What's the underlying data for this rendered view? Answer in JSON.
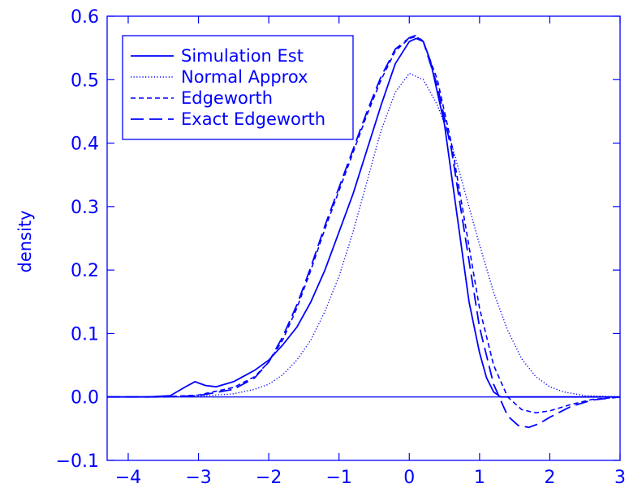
{
  "chart_data": {
    "type": "line",
    "xlabel": "",
    "ylabel": "density",
    "xlim": [
      -4.3,
      3.0
    ],
    "ylim": [
      -0.1,
      0.6
    ],
    "xticks": [
      -4,
      -3,
      -2,
      -1,
      0,
      1,
      2,
      3
    ],
    "xtick_labels": [
      "−4",
      "−3",
      "−2",
      "−1",
      "0",
      "1",
      "2",
      "3"
    ],
    "yticks": [
      -0.1,
      0.0,
      0.1,
      0.2,
      0.3,
      0.4,
      0.5,
      0.6
    ],
    "ytick_labels": [
      "−0.1",
      "0.0",
      "0.1",
      "0.2",
      "0.3",
      "0.4",
      "0.5",
      "0.6"
    ],
    "grid": false,
    "legend_position": "top-left",
    "color": "#0000ff",
    "series": [
      {
        "name": "Simulation Est",
        "style": "solid",
        "x": [
          -4.3,
          -3.7,
          -3.4,
          -3.2,
          -3.05,
          -2.9,
          -2.75,
          -2.5,
          -2.2,
          -2.0,
          -1.8,
          -1.6,
          -1.4,
          -1.2,
          -1.0,
          -0.8,
          -0.6,
          -0.4,
          -0.2,
          0.0,
          0.1,
          0.2,
          0.3,
          0.5,
          0.7,
          0.85,
          1.0,
          1.1,
          1.2,
          1.3,
          1.5,
          2.0,
          2.5,
          3.0
        ],
        "y": [
          0.0,
          0.0,
          0.002,
          0.015,
          0.024,
          0.018,
          0.016,
          0.024,
          0.042,
          0.058,
          0.082,
          0.11,
          0.15,
          0.2,
          0.26,
          0.32,
          0.39,
          0.46,
          0.525,
          0.56,
          0.565,
          0.56,
          0.53,
          0.43,
          0.27,
          0.15,
          0.07,
          0.03,
          0.008,
          0.0,
          0.0,
          0.0,
          0.0,
          0.0
        ]
      },
      {
        "name": "Normal Approx",
        "style": "dotted",
        "x": [
          -4.3,
          -3.5,
          -3.0,
          -2.5,
          -2.2,
          -2.0,
          -1.8,
          -1.6,
          -1.4,
          -1.2,
          -1.0,
          -0.8,
          -0.6,
          -0.4,
          -0.2,
          0.0,
          0.2,
          0.4,
          0.6,
          0.8,
          1.0,
          1.2,
          1.4,
          1.6,
          1.8,
          2.0,
          2.2,
          2.5,
          3.0
        ],
        "y": [
          0.0,
          0.0,
          0.001,
          0.005,
          0.012,
          0.02,
          0.035,
          0.058,
          0.09,
          0.135,
          0.19,
          0.26,
          0.34,
          0.42,
          0.48,
          0.51,
          0.5,
          0.46,
          0.4,
          0.32,
          0.24,
          0.165,
          0.105,
          0.06,
          0.032,
          0.016,
          0.008,
          0.002,
          0.0
        ]
      },
      {
        "name": "Edgeworth",
        "style": "short-dash",
        "x": [
          -4.3,
          -3.5,
          -3.0,
          -2.5,
          -2.2,
          -2.0,
          -1.8,
          -1.6,
          -1.4,
          -1.2,
          -1.0,
          -0.8,
          -0.6,
          -0.4,
          -0.2,
          0.0,
          0.1,
          0.2,
          0.4,
          0.6,
          0.8,
          1.0,
          1.2,
          1.4,
          1.6,
          1.8,
          2.0,
          2.3,
          2.6,
          3.0
        ],
        "y": [
          0.0,
          0.0,
          0.003,
          0.015,
          0.032,
          0.055,
          0.09,
          0.14,
          0.2,
          0.265,
          0.325,
          0.385,
          0.445,
          0.5,
          0.545,
          0.565,
          0.568,
          0.56,
          0.5,
          0.4,
          0.27,
          0.14,
          0.05,
          0.0,
          -0.02,
          -0.025,
          -0.022,
          -0.012,
          -0.004,
          0.0
        ]
      },
      {
        "name": "Exact Edgeworth",
        "style": "long-dash",
        "x": [
          -4.3,
          -3.5,
          -3.0,
          -2.5,
          -2.2,
          -2.0,
          -1.8,
          -1.6,
          -1.4,
          -1.2,
          -1.0,
          -0.8,
          -0.6,
          -0.4,
          -0.2,
          0.0,
          0.1,
          0.2,
          0.4,
          0.6,
          0.8,
          1.0,
          1.2,
          1.4,
          1.55,
          1.7,
          1.85,
          2.0,
          2.3,
          2.6,
          3.0
        ],
        "y": [
          0.0,
          0.0,
          0.002,
          0.012,
          0.03,
          0.055,
          0.095,
          0.145,
          0.205,
          0.27,
          0.33,
          0.39,
          0.45,
          0.505,
          0.548,
          0.566,
          0.57,
          0.56,
          0.49,
          0.39,
          0.25,
          0.11,
          0.02,
          -0.03,
          -0.045,
          -0.048,
          -0.042,
          -0.032,
          -0.015,
          -0.005,
          0.0
        ]
      }
    ]
  }
}
